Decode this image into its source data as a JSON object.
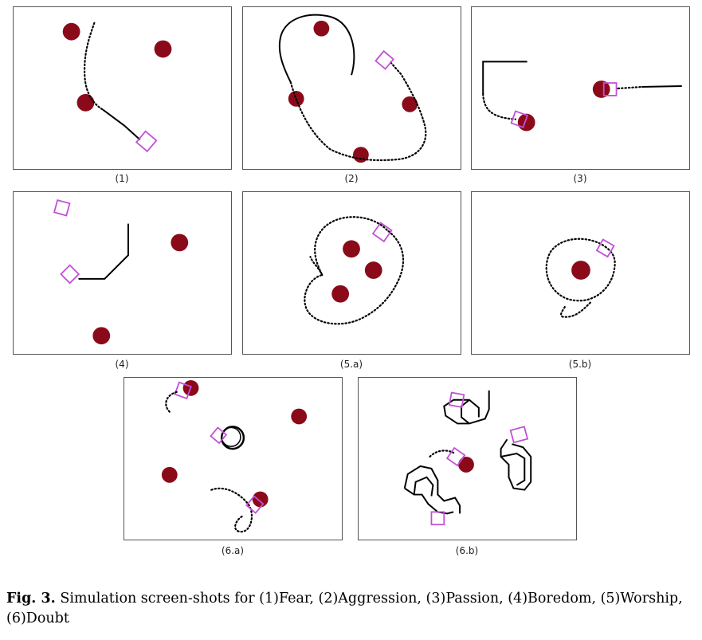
{
  "panels": [
    {
      "id": "p1",
      "label": "(1)"
    },
    {
      "id": "p2",
      "label": "(2)"
    },
    {
      "id": "p3",
      "label": "(3)"
    },
    {
      "id": "p4",
      "label": "(4)"
    },
    {
      "id": "p5a",
      "label": "(5.a)"
    },
    {
      "id": "p5b",
      "label": "(5.b)"
    },
    {
      "id": "p6a",
      "label": "(6.a)"
    },
    {
      "id": "p6b",
      "label": "(6.b)"
    }
  ],
  "caption": {
    "fig_label": "Fig. 3.",
    "text": " Simulation screen-shots for (1)Fear, (2)Aggression, (3)Passion, (4)Boredom, (5)Worship, (6)Doubt"
  },
  "colors": {
    "obstacle": "#8b0a1a",
    "agent": "#c24fd8",
    "trail": "#000000"
  }
}
